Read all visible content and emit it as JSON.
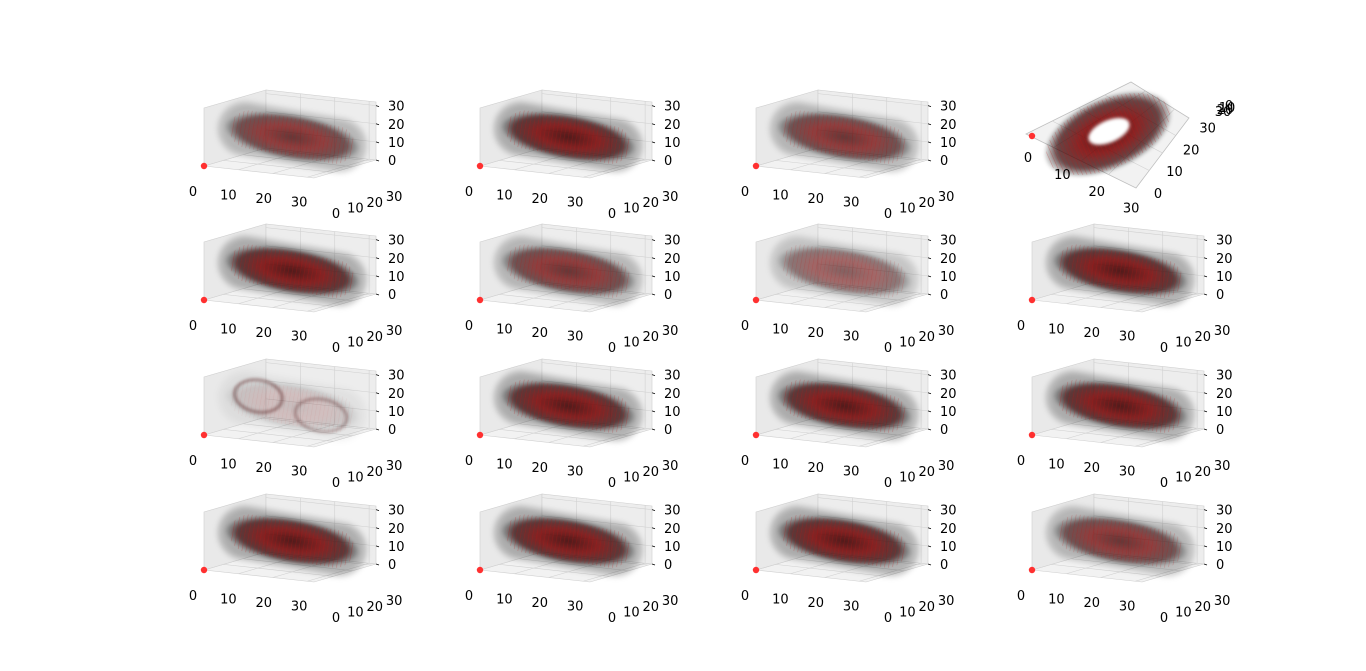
{
  "figure": {
    "rows": 4,
    "cols": 4,
    "blob_color": "#8b0000",
    "blob_shadow": "#000000",
    "origin_marker_color": "#ff3030",
    "pane_color": "#f2f2f2",
    "grid_color": "#d0d0d0"
  },
  "axis_ticks": {
    "x": [
      "0",
      "10",
      "20",
      "30"
    ],
    "y": [
      "0",
      "10",
      "20",
      "30"
    ],
    "z": [
      "0",
      "10",
      "20",
      "30"
    ]
  },
  "chart_data": [
    {
      "type": "scatter",
      "panel": 1,
      "view": "oblique",
      "shape": "capsule",
      "density": "medium",
      "xlim": [
        0,
        32
      ],
      "ylim": [
        0,
        32
      ],
      "zlim": [
        0,
        32
      ]
    },
    {
      "type": "scatter",
      "panel": 2,
      "view": "oblique",
      "shape": "capsule",
      "density": "high",
      "xlim": [
        0,
        32
      ],
      "ylim": [
        0,
        32
      ],
      "zlim": [
        0,
        32
      ]
    },
    {
      "type": "scatter",
      "panel": 3,
      "view": "oblique",
      "shape": "capsule",
      "density": "medium",
      "xlim": [
        0,
        32
      ],
      "ylim": [
        0,
        32
      ],
      "zlim": [
        0,
        32
      ]
    },
    {
      "type": "scatter",
      "panel": 4,
      "view": "top-down",
      "shape": "ring",
      "density": "high",
      "xlim": [
        0,
        32
      ],
      "ylim": [
        0,
        32
      ],
      "zlim": [
        0,
        32
      ]
    },
    {
      "type": "scatter",
      "panel": 5,
      "view": "oblique",
      "shape": "capsule",
      "density": "high",
      "xlim": [
        0,
        32
      ],
      "ylim": [
        0,
        32
      ],
      "zlim": [
        0,
        32
      ]
    },
    {
      "type": "scatter",
      "panel": 6,
      "view": "oblique",
      "shape": "capsule",
      "density": "medium",
      "xlim": [
        0,
        32
      ],
      "ylim": [
        0,
        32
      ],
      "zlim": [
        0,
        32
      ]
    },
    {
      "type": "scatter",
      "panel": 7,
      "view": "oblique",
      "shape": "capsule",
      "density": "low",
      "xlim": [
        0,
        32
      ],
      "ylim": [
        0,
        32
      ],
      "zlim": [
        0,
        32
      ]
    },
    {
      "type": "scatter",
      "panel": 8,
      "view": "oblique",
      "shape": "capsule",
      "density": "high",
      "xlim": [
        0,
        32
      ],
      "ylim": [
        0,
        32
      ],
      "zlim": [
        0,
        32
      ]
    },
    {
      "type": "scatter",
      "panel": 9,
      "view": "oblique",
      "shape": "capsule",
      "density": "sparse",
      "xlim": [
        0,
        32
      ],
      "ylim": [
        0,
        32
      ],
      "zlim": [
        0,
        32
      ]
    },
    {
      "type": "scatter",
      "panel": 10,
      "view": "oblique",
      "shape": "capsule",
      "density": "high",
      "xlim": [
        0,
        32
      ],
      "ylim": [
        0,
        32
      ],
      "zlim": [
        0,
        32
      ]
    },
    {
      "type": "scatter",
      "panel": 11,
      "view": "oblique",
      "shape": "capsule",
      "density": "high",
      "xlim": [
        0,
        32
      ],
      "ylim": [
        0,
        32
      ],
      "zlim": [
        0,
        32
      ]
    },
    {
      "type": "scatter",
      "panel": 12,
      "view": "oblique",
      "shape": "capsule",
      "density": "high",
      "xlim": [
        0,
        32
      ],
      "ylim": [
        0,
        32
      ],
      "zlim": [
        0,
        32
      ]
    },
    {
      "type": "scatter",
      "panel": 13,
      "view": "oblique",
      "shape": "capsule",
      "density": "high",
      "xlim": [
        0,
        32
      ],
      "ylim": [
        0,
        32
      ],
      "zlim": [
        0,
        32
      ]
    },
    {
      "type": "scatter",
      "panel": 14,
      "view": "oblique",
      "shape": "capsule",
      "density": "high",
      "xlim": [
        0,
        32
      ],
      "ylim": [
        0,
        32
      ],
      "zlim": [
        0,
        32
      ]
    },
    {
      "type": "scatter",
      "panel": 15,
      "view": "oblique",
      "shape": "capsule",
      "density": "high",
      "xlim": [
        0,
        32
      ],
      "ylim": [
        0,
        32
      ],
      "zlim": [
        0,
        32
      ]
    },
    {
      "type": "scatter",
      "panel": 16,
      "view": "oblique",
      "shape": "capsule",
      "density": "medium",
      "xlim": [
        0,
        32
      ],
      "ylim": [
        0,
        32
      ],
      "zlim": [
        0,
        32
      ]
    }
  ]
}
